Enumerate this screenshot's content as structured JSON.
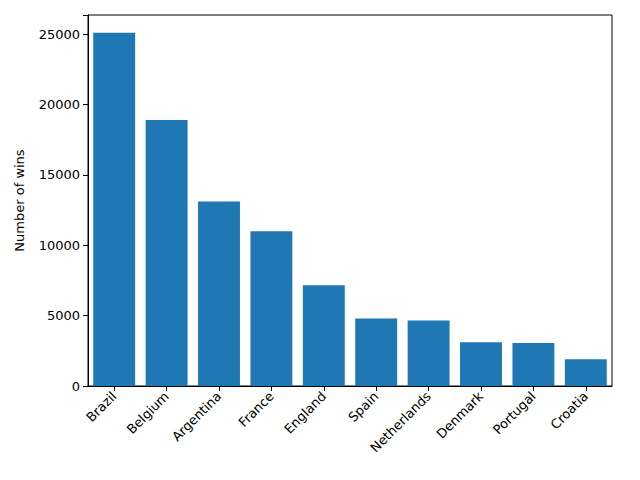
{
  "chart_data": {
    "type": "bar",
    "y_label": "Number of wins",
    "categories": [
      "Brazil",
      "Belgium",
      "Argentina",
      "France",
      "England",
      "Spain",
      "Netherlands",
      "Denmark",
      "Portugal",
      "Croatia"
    ],
    "values": [
      25100,
      18900,
      13100,
      11000,
      7150,
      4800,
      4650,
      3100,
      3050,
      1900
    ],
    "color": "#1f77b4",
    "ylim": [
      0,
      26355
    ],
    "yticks": [
      0,
      5000,
      10000,
      15000,
      20000,
      25000
    ],
    "grid": false
  }
}
